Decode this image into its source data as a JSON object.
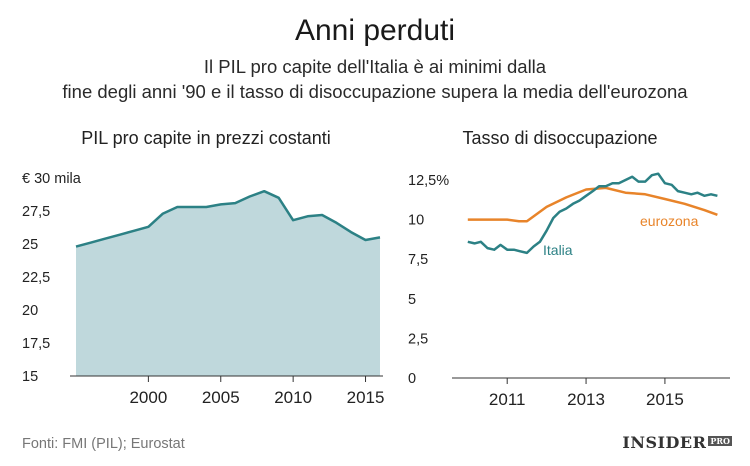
{
  "header": {
    "title": "Anni perduti",
    "subtitle_line1": "Il PIL pro capite dell'Italia è ai minimi dalla",
    "subtitle_line2": "fine degli anni '90 e il tasso di disoccupazione supera la media dell'eurozona"
  },
  "footer": {
    "source": "Fonti: FMI (PIL); Eurostat",
    "brand": "INSIDER",
    "brand_tag": "PRO"
  },
  "colors": {
    "gdp_fill": "#bfd8dc",
    "gdp_line": "#2c8185",
    "italy_line": "#2c8185",
    "eurozone_line": "#e8842a",
    "axis": "#333333",
    "text": "#222222"
  },
  "chart_data": [
    {
      "type": "area",
      "title": "PIL pro capite in prezzi costanti",
      "unit_label": "€ 30 mila",
      "xlabel": "",
      "ylabel": "",
      "xlim": [
        1995,
        2016
      ],
      "ylim": [
        15,
        30
      ],
      "yticks": [
        15,
        17.5,
        20,
        22.5,
        25,
        27.5,
        30
      ],
      "ytick_labels": [
        "15",
        "17,5",
        "20",
        "22,5",
        "25",
        "27,5",
        "€ 30 mila"
      ],
      "xticks": [
        2000,
        2005,
        2010,
        2015
      ],
      "xtick_labels": [
        "2000",
        "2005",
        "2010",
        "2015"
      ],
      "grid": false,
      "series": [
        {
          "name": "PIL pro capite",
          "x": [
            1995,
            1996,
            1997,
            1998,
            1999,
            2000,
            2001,
            2002,
            2003,
            2004,
            2005,
            2006,
            2007,
            2008,
            2009,
            2010,
            2011,
            2012,
            2013,
            2014,
            2015,
            2016
          ],
          "values": [
            24.8,
            25.1,
            25.4,
            25.7,
            26.0,
            26.3,
            27.3,
            27.8,
            27.8,
            27.8,
            28.0,
            28.1,
            28.6,
            29.0,
            28.5,
            26.8,
            27.1,
            27.2,
            26.6,
            25.9,
            25.3,
            25.5
          ]
        }
      ]
    },
    {
      "type": "line",
      "title": "Tasso di disoccupazione",
      "xlabel": "",
      "ylabel": "",
      "xlim": [
        2009.6,
        2016.6
      ],
      "ylim": [
        0,
        12.5
      ],
      "yticks": [
        0,
        2.5,
        5,
        7.5,
        10,
        12.5
      ],
      "ytick_labels": [
        "0",
        "2,5",
        "5",
        "7,5",
        "10",
        "12,5%"
      ],
      "xticks": [
        2011,
        2013,
        2015
      ],
      "xtick_labels": [
        "2011",
        "2013",
        "2015"
      ],
      "grid": false,
      "series": [
        {
          "name": "Italia",
          "x": [
            2010.0,
            2010.17,
            2010.33,
            2010.5,
            2010.67,
            2010.83,
            2011.0,
            2011.17,
            2011.33,
            2011.5,
            2011.67,
            2011.83,
            2012.0,
            2012.17,
            2012.33,
            2012.5,
            2012.67,
            2012.83,
            2013.0,
            2013.17,
            2013.33,
            2013.5,
            2013.67,
            2013.83,
            2014.0,
            2014.17,
            2014.33,
            2014.5,
            2014.67,
            2014.83,
            2015.0,
            2015.17,
            2015.33,
            2015.5,
            2015.67,
            2015.83,
            2016.0,
            2016.17,
            2016.33
          ],
          "values": [
            8.6,
            8.5,
            8.6,
            8.2,
            8.1,
            8.4,
            8.1,
            8.1,
            8.0,
            7.9,
            8.3,
            8.6,
            9.3,
            10.1,
            10.5,
            10.7,
            11.0,
            11.2,
            11.5,
            11.8,
            12.1,
            12.1,
            12.3,
            12.3,
            12.5,
            12.7,
            12.4,
            12.4,
            12.8,
            12.9,
            12.3,
            12.2,
            11.8,
            11.7,
            11.6,
            11.7,
            11.5,
            11.6,
            11.5
          ]
        },
        {
          "name": "eurozona",
          "x": [
            2010.0,
            2010.5,
            2011.0,
            2011.3,
            2011.5,
            2012.0,
            2012.5,
            2013.0,
            2013.5,
            2014.0,
            2014.5,
            2015.0,
            2015.5,
            2016.0,
            2016.33
          ],
          "values": [
            10.0,
            10.0,
            10.0,
            9.9,
            9.9,
            10.8,
            11.4,
            11.9,
            12.0,
            11.7,
            11.6,
            11.3,
            11.0,
            10.6,
            10.3
          ]
        }
      ],
      "annotations": [
        {
          "text": "Italia",
          "series": "Italia"
        },
        {
          "text": "eurozona",
          "series": "eurozona"
        }
      ]
    }
  ]
}
